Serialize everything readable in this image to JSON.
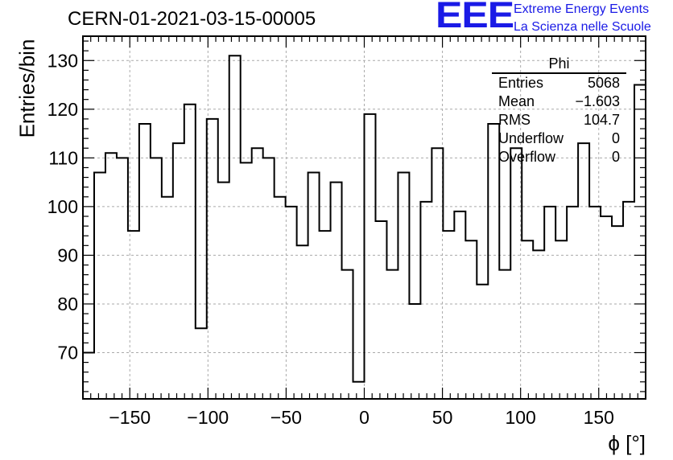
{
  "header": {
    "run_title": "CERN-01-2021-03-15-00005",
    "logo_text": "EEE",
    "logo_line1": "Extreme Energy Events",
    "logo_line2": "La Scienza nelle Scuole"
  },
  "stats_box": {
    "title": "Phi",
    "rows": [
      {
        "label": "Entries",
        "value": "5068"
      },
      {
        "label": "Mean",
        "value": "−1.603"
      },
      {
        "label": "RMS",
        "value": "104.7"
      },
      {
        "label": "Underflow",
        "value": "0"
      },
      {
        "label": "Overflow",
        "value": "0"
      }
    ]
  },
  "chart_data": {
    "type": "bar",
    "style": "histogram-step",
    "title": "CERN-01-2021-03-15-00005",
    "xlabel": "ϕ [°]",
    "ylabel": "Entries/bin",
    "xlim": [
      -180,
      180
    ],
    "ylim": [
      60.5,
      135
    ],
    "bin_width": 7.2,
    "x_ticks": [
      -150,
      -100,
      -50,
      0,
      50,
      100,
      150
    ],
    "x_tick_labels": [
      "−150",
      "−100",
      "−50",
      "0",
      "50",
      "100",
      "150"
    ],
    "y_ticks": [
      70,
      80,
      90,
      100,
      110,
      120,
      130
    ],
    "y_tick_labels": [
      "70",
      "80",
      "90",
      "100",
      "110",
      "120",
      "130"
    ],
    "grid": true,
    "values": [
      70,
      107,
      111,
      110,
      95,
      117,
      110,
      102,
      113,
      121,
      75,
      118,
      105,
      131,
      109,
      112,
      110,
      102,
      100,
      92,
      107,
      95,
      105,
      87,
      64,
      119,
      97,
      87,
      107,
      80,
      101,
      112,
      95,
      99,
      93,
      84,
      117,
      87,
      112,
      93,
      91,
      100,
      93,
      100,
      113,
      100,
      98,
      96,
      101,
      125
    ]
  }
}
